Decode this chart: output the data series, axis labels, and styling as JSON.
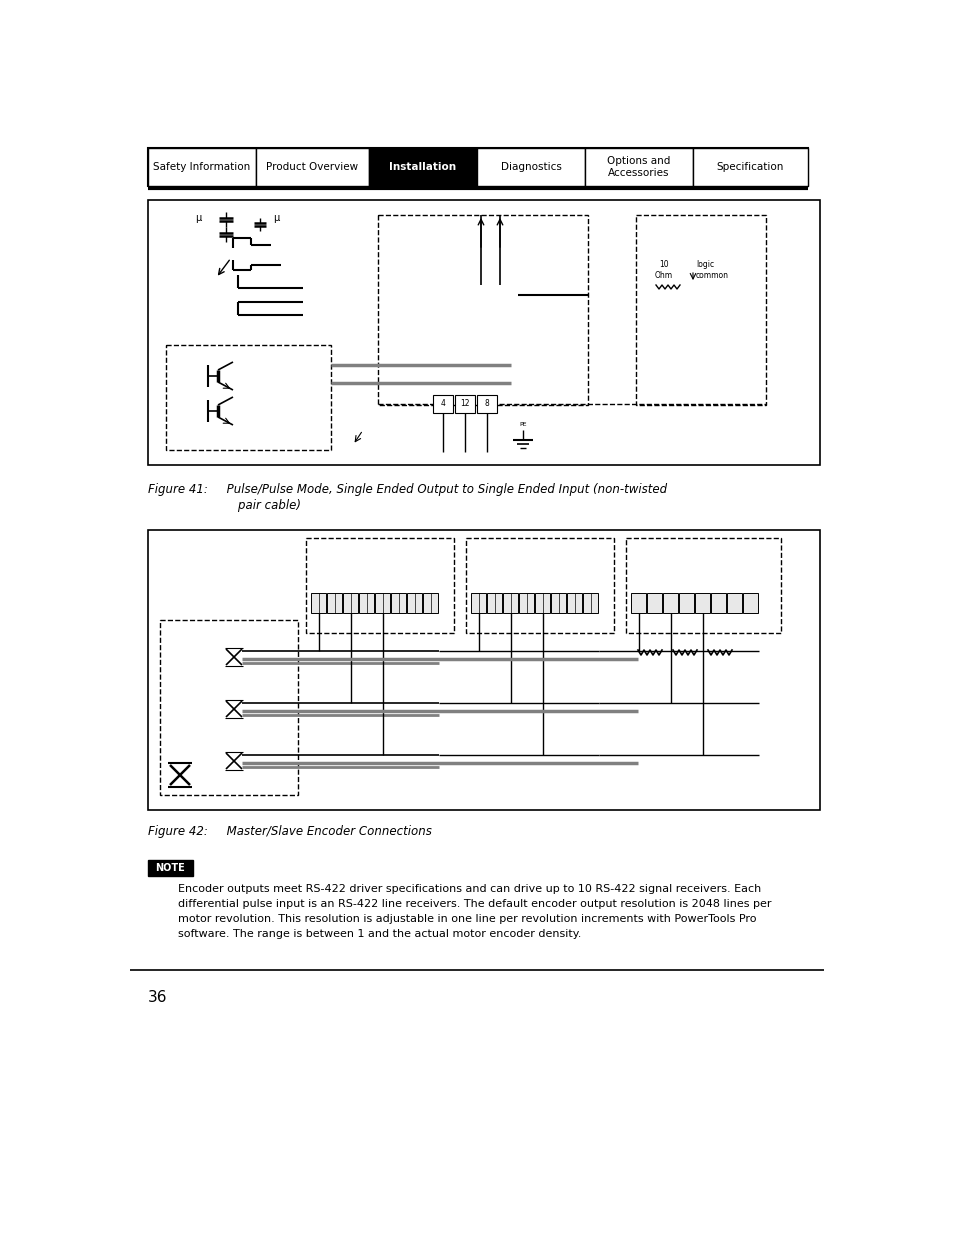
{
  "page_bg": "#ffffff",
  "nav_items": [
    {
      "label": "Safety Information",
      "active": false
    },
    {
      "label": "Product Overview",
      "active": false
    },
    {
      "label": "Installation",
      "active": true
    },
    {
      "label": "Diagnostics",
      "active": false
    },
    {
      "label": "Options and\nAccessories",
      "active": false
    },
    {
      "label": "Specification",
      "active": false
    }
  ],
  "fig1_caption_line1": "Figure 41:     Pulse/Pulse Mode, Single Ended Output to Single Ended Input (non-twisted",
  "fig1_caption_line2": "                        pair cable)",
  "fig2_caption": "Figure 42:     Master/Slave Encoder Connections",
  "note_text_line1": "Encoder outputs meet RS-422 driver specifications and can drive up to 10 RS-422 signal receivers. Each",
  "note_text_line2": "differential pulse input is an RS-422 line receivers. The default encoder output resolution is 2048 lines per",
  "note_text_line3": "motor revolution. This resolution is adjustable in one line per revolution increments with PowerTools Pro",
  "note_text_line4": "software. The range is between 1 and the actual motor encoder density.",
  "page_number": "36"
}
